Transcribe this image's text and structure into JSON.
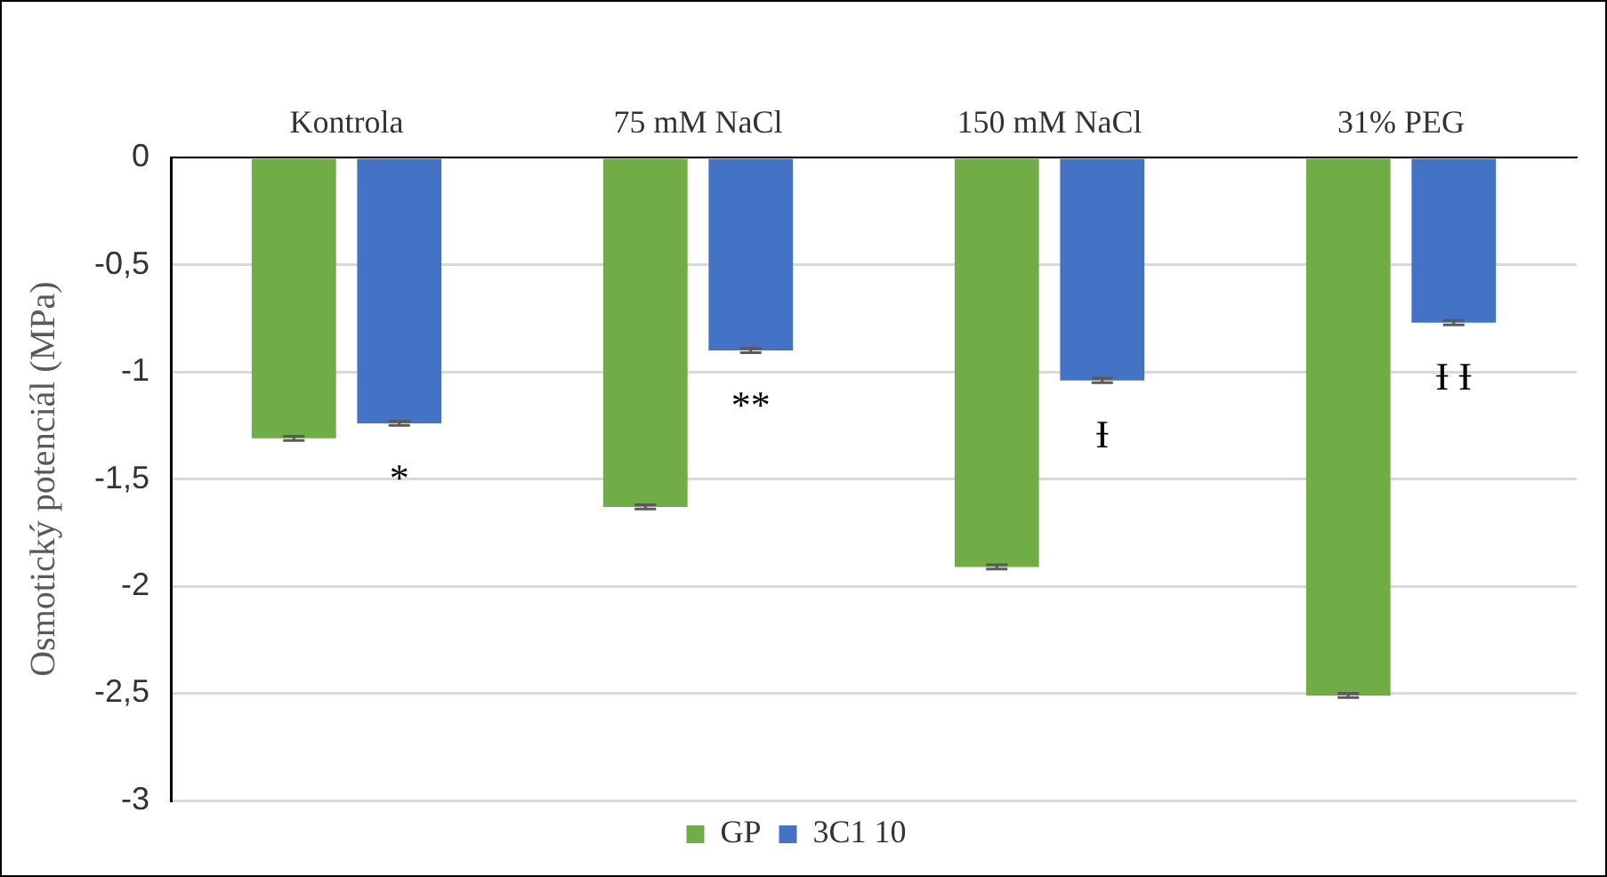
{
  "chart_data": {
    "type": "bar",
    "ylabel": "Osmotický potenciál (MPa)",
    "categories": [
      "Kontrola",
      "75 mM NaCl",
      "150 mM NaCl",
      "31% PEG"
    ],
    "series": [
      {
        "name": "GP",
        "color": "#70ad47",
        "values": [
          -1.31,
          -1.63,
          -1.91,
          -2.51
        ],
        "errors": [
          0.01,
          0.01,
          0.01,
          0.01
        ]
      },
      {
        "name": "3C1 10",
        "color": "#4472c4",
        "values": [
          -1.24,
          -0.9,
          -1.04,
          -0.77
        ],
        "errors": [
          0.01,
          0.01,
          0.01,
          0.01
        ]
      }
    ],
    "ylim": [
      -3,
      0
    ],
    "yticks": [
      0,
      {
        "value": -0.5,
        "label": "-0,5"
      },
      -1,
      {
        "value": -1.5,
        "label": "-1,5"
      },
      -2,
      {
        "value": -2.5,
        "label": "-2,5"
      },
      -3
    ],
    "grid": "y",
    "legend": "bottom",
    "annotations": [
      "*",
      "**",
      "Ɨ",
      "Ɨ Ɨ"
    ]
  }
}
